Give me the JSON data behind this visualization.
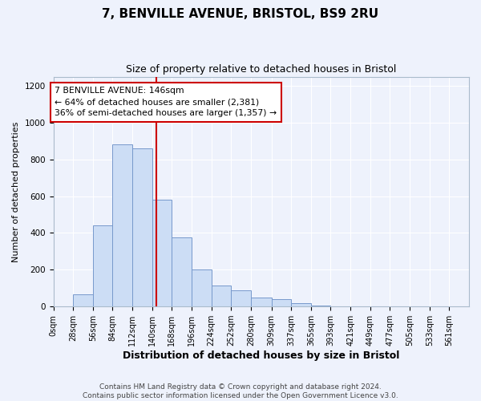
{
  "title": "7, BENVILLE AVENUE, BRISTOL, BS9 2RU",
  "subtitle": "Size of property relative to detached houses in Bristol",
  "xlabel": "Distribution of detached houses by size in Bristol",
  "ylabel": "Number of detached properties",
  "bin_labels": [
    "0sqm",
    "28sqm",
    "56sqm",
    "84sqm",
    "112sqm",
    "140sqm",
    "168sqm",
    "196sqm",
    "224sqm",
    "252sqm",
    "280sqm",
    "309sqm",
    "337sqm",
    "365sqm",
    "393sqm",
    "421sqm",
    "449sqm",
    "477sqm",
    "505sqm",
    "533sqm",
    "561sqm"
  ],
  "bin_edges": [
    0,
    28,
    56,
    84,
    112,
    140,
    168,
    196,
    224,
    252,
    280,
    309,
    337,
    365,
    393,
    421,
    449,
    477,
    505,
    533,
    561,
    589
  ],
  "bin_counts": [
    0,
    65,
    443,
    880,
    862,
    580,
    375,
    202,
    113,
    88,
    50,
    40,
    18,
    5,
    0,
    0,
    0,
    0,
    0,
    0,
    0
  ],
  "bar_color": "#ccddf5",
  "bar_edge_color": "#7799cc",
  "vline_x": 146,
  "vline_color": "#cc0000",
  "annotation_line1": "7 BENVILLE AVENUE: 146sqm",
  "annotation_line2": "← 64% of detached houses are smaller (2,381)",
  "annotation_line3": "36% of semi-detached houses are larger (1,357) →",
  "annotation_box_color": "#ffffff",
  "annotation_box_edge": "#cc0000",
  "ylim": [
    0,
    1250
  ],
  "yticks": [
    0,
    200,
    400,
    600,
    800,
    1000,
    1200
  ],
  "footer_text": "Contains HM Land Registry data © Crown copyright and database right 2024.\nContains public sector information licensed under the Open Government Licence v3.0.",
  "bg_color": "#eef2fc",
  "plot_bg_color": "#eef2fc",
  "grid_color": "#ffffff",
  "title_fontsize": 11,
  "subtitle_fontsize": 9,
  "ylabel_fontsize": 8,
  "xlabel_fontsize": 9,
  "tick_fontsize": 7,
  "footer_fontsize": 6.5
}
